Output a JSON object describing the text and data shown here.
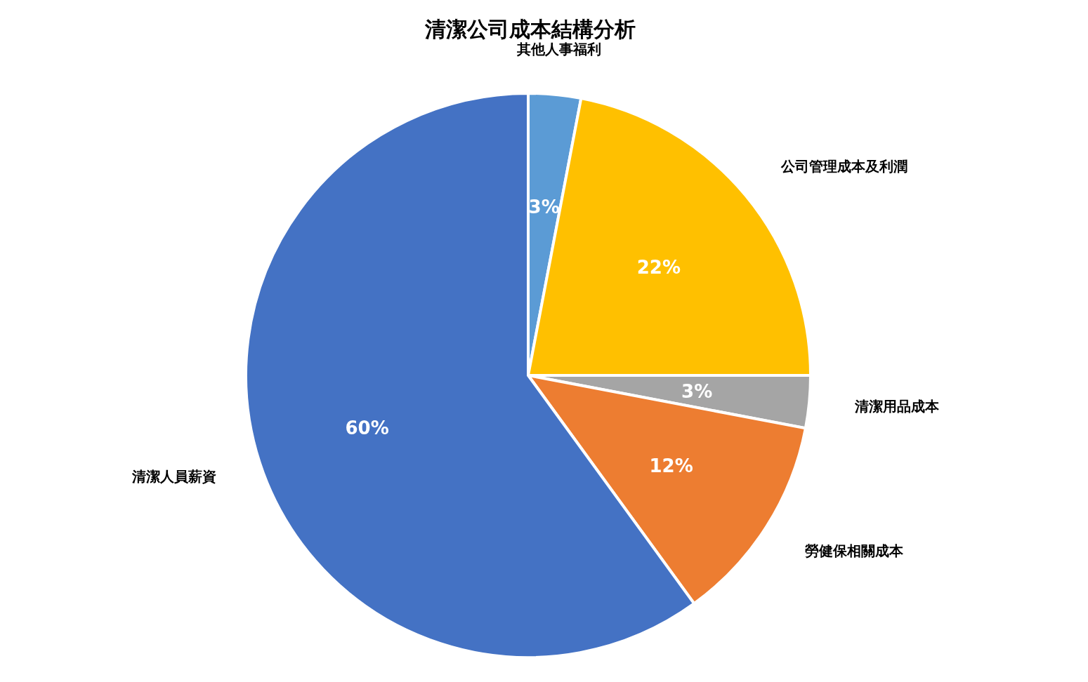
{
  "chart_data": {
    "type": "pie",
    "title": "清潔公司成本結構分析",
    "categories": [
      "其他人事福利",
      "公司管理成本及利潤",
      "清潔用品成本",
      "勞健保相關成本",
      "清潔人員薪資"
    ],
    "values": [
      3,
      22,
      3,
      12,
      60
    ],
    "colors": [
      "#5b9bd5",
      "#ffc000",
      "#a5a5a5",
      "#ed7d31",
      "#4472c4"
    ],
    "value_labels": [
      "3%",
      "22%",
      "3%",
      "12%",
      "60%"
    ]
  }
}
